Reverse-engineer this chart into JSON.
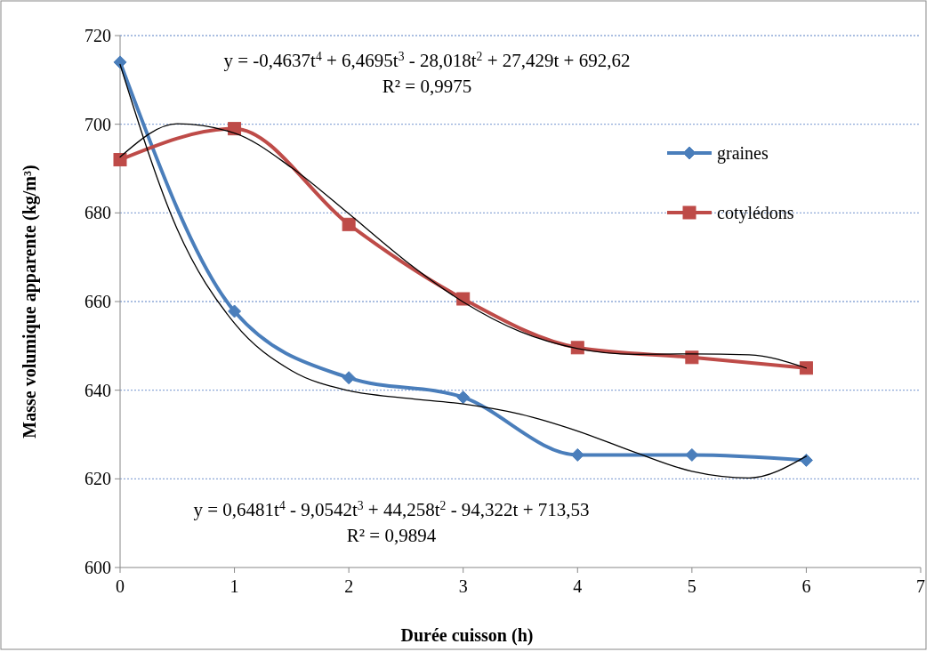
{
  "chart_data": {
    "type": "line",
    "xlabel": "Durée cuisson (h)",
    "ylabel": "Masse volumique apparente (kg/m³)",
    "x": [
      0,
      1,
      2,
      3,
      4,
      5,
      6
    ],
    "xlim": [
      0,
      7
    ],
    "xticks": [
      0,
      1,
      2,
      3,
      4,
      5,
      6,
      7
    ],
    "ylim": [
      600,
      720
    ],
    "yticks": [
      600,
      620,
      640,
      660,
      680,
      700,
      720
    ],
    "grid": "y",
    "legend": "right",
    "series": [
      {
        "name": "graines",
        "color": "#4a7ebb",
        "marker": "diamond",
        "values": [
          714.0,
          657.8,
          642.8,
          638.4,
          625.4,
          625.4,
          624.2
        ]
      },
      {
        "name": "cotylédons",
        "color": "#be4b48",
        "marker": "square",
        "values": [
          692,
          699,
          677.4,
          660.6,
          649.6,
          647.4,
          645
        ]
      },
      {
        "color": "#000000",
        "marker": "none",
        "x": [
          0,
          0.5,
          1,
          1.5,
          2,
          2.5,
          3,
          3.5,
          4,
          4.5,
          5,
          5.5,
          6
        ],
        "values": [
          692.6,
          700.1,
          698,
          690.2,
          679.8,
          669.1,
          659.9,
          653.2,
          649.4,
          648.1,
          648.2,
          648,
          645
        ]
      },
      {
        "color": "#000000",
        "marker": "none",
        "x": [
          0,
          0.5,
          1,
          1.5,
          2,
          2.5,
          3,
          3.5,
          4,
          4.5,
          5,
          5.5,
          6
        ],
        "values": [
          713.5,
          676.3,
          655.1,
          644.4,
          639.9,
          638.2,
          636.9,
          634.6,
          630.8,
          626,
          621.7,
          620.2,
          625.1
        ]
      }
    ],
    "annotations": [
      "y = -0,4637t$^{4}$ + 6,4695t$^{3}$ - 28,018t$^{2}$ + 27,429t + 692,62",
      "R² = 0,9975",
      "y = 0,6481t$^{4}$ - 9,0542t$^{3}$ + 44,258t$^{2}$ - 94,322t + 713,53",
      "R² = 0,9894"
    ]
  }
}
